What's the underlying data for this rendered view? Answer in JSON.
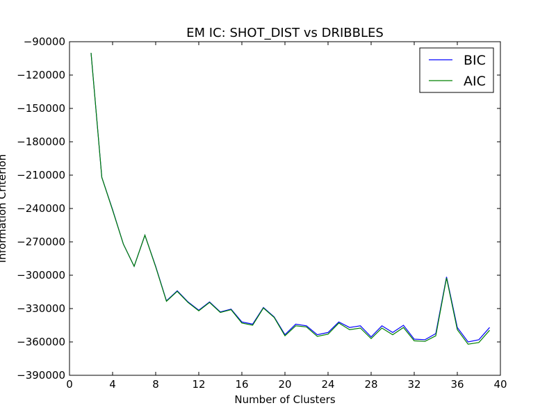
{
  "chart_data": {
    "type": "line",
    "title": "EM IC: SHOT_DIST vs DRIBBLES",
    "xlabel": "Number of Clusters",
    "ylabel": "Information Criterion",
    "xlim": [
      0,
      40
    ],
    "ylim": [
      -390000,
      -90000
    ],
    "xticks": [
      0,
      4,
      8,
      12,
      16,
      20,
      24,
      28,
      32,
      36,
      40
    ],
    "yticks": [
      -390000,
      -360000,
      -330000,
      -300000,
      -270000,
      -240000,
      -210000,
      -180000,
      -150000,
      -120000,
      -90000
    ],
    "xtick_labels": [
      "0",
      "4",
      "8",
      "12",
      "16",
      "20",
      "24",
      "28",
      "32",
      "36",
      "40"
    ],
    "ytick_labels": [
      "−390000",
      "−360000",
      "−330000",
      "−300000",
      "−270000",
      "−240000",
      "−210000",
      "−180000",
      "−150000",
      "−120000",
      "−90000"
    ],
    "grid": false,
    "legend_position": "top-right",
    "x": [
      2,
      3,
      4,
      5,
      6,
      7,
      8,
      9,
      10,
      11,
      12,
      13,
      14,
      15,
      16,
      17,
      18,
      19,
      20,
      21,
      22,
      23,
      24,
      25,
      26,
      27,
      28,
      29,
      30,
      31,
      32,
      33,
      34,
      35,
      36,
      37,
      38,
      39
    ],
    "series": [
      {
        "name": "BIC",
        "color": "#0000ff",
        "values": [
          -100000,
          -212000,
          -241000,
          -272000,
          -292000,
          -264000,
          -292000,
          -323000,
          -314000,
          -324000,
          -331500,
          -324000,
          -333000,
          -330500,
          -342000,
          -344000,
          -329000,
          -337500,
          -353500,
          -344000,
          -345500,
          -353500,
          -351500,
          -342000,
          -347000,
          -345500,
          -355500,
          -345500,
          -351500,
          -345000,
          -357500,
          -358000,
          -352500,
          -301500,
          -347000,
          -360000,
          -358000,
          -347000
        ]
      },
      {
        "name": "AIC",
        "color": "#008000",
        "values": [
          -100000,
          -212000,
          -241500,
          -272000,
          -292000,
          -264000,
          -292500,
          -323500,
          -314500,
          -324500,
          -332000,
          -324500,
          -333500,
          -331000,
          -343000,
          -345000,
          -329500,
          -338000,
          -354500,
          -345500,
          -346500,
          -355000,
          -353000,
          -343000,
          -349000,
          -347500,
          -357000,
          -347500,
          -353500,
          -347000,
          -359000,
          -359500,
          -354500,
          -302500,
          -349000,
          -362000,
          -360500,
          -349500
        ]
      }
    ]
  }
}
